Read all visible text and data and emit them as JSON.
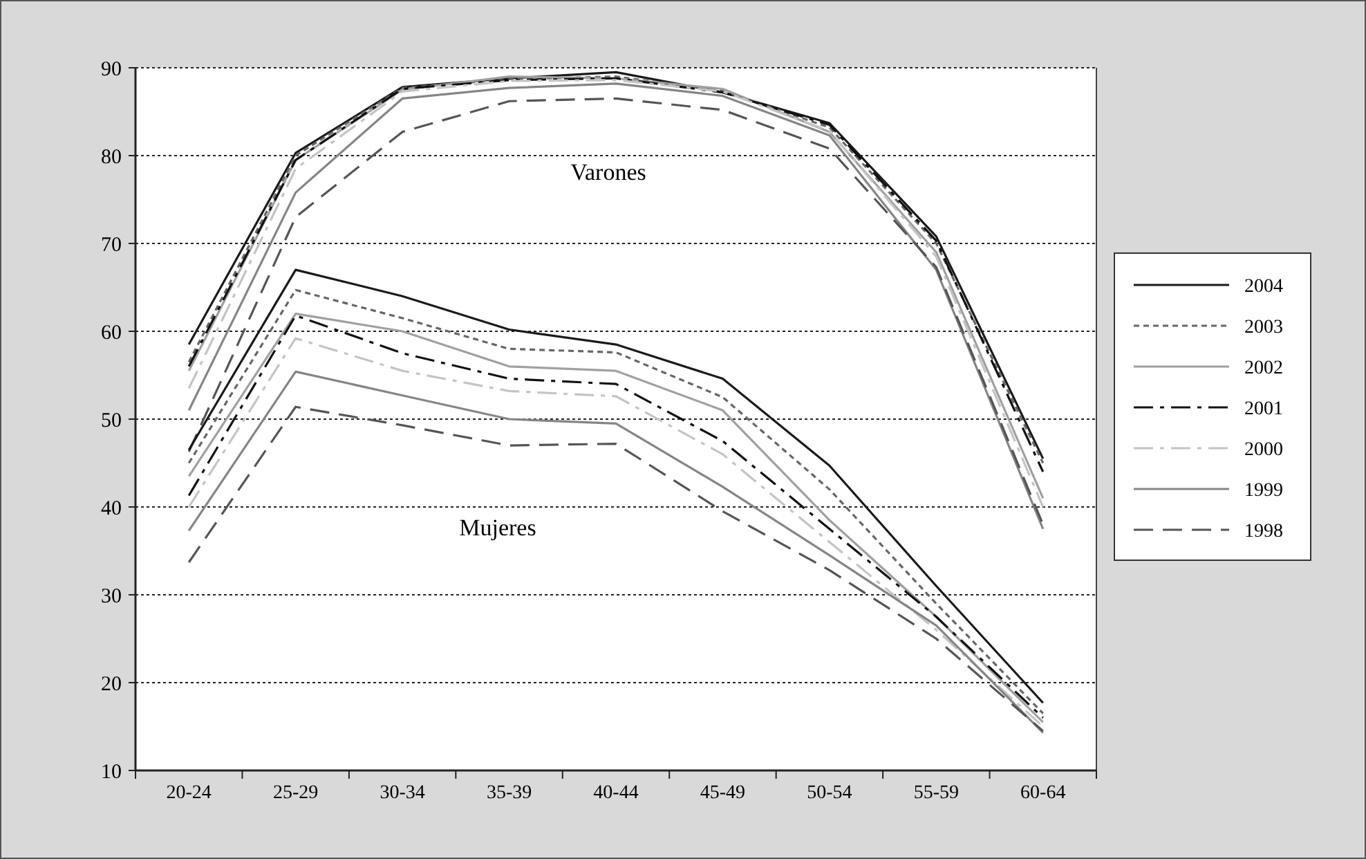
{
  "chart_data": {
    "type": "line",
    "categories": [
      "20-24",
      "25-29",
      "30-34",
      "35-39",
      "40-44",
      "45-49",
      "50-54",
      "55-59",
      "60-64"
    ],
    "ylim": [
      10,
      90
    ],
    "yticks": [
      10,
      20,
      30,
      40,
      50,
      60,
      70,
      80,
      90
    ],
    "grid": "y",
    "legend": "right",
    "marker": "none",
    "annotations": [
      "Varones",
      "Mujeres"
    ],
    "series": [
      {
        "name": "2004",
        "color": "#1a1a1a",
        "line_style": "solid",
        "values": [
          58.5,
          80.3,
          87.8,
          88.8,
          89.5,
          87.2,
          83.7,
          70.8,
          45.5
        ]
      },
      {
        "name": "2003",
        "color": "#666666",
        "line_style": "dotted",
        "values": [
          56.5,
          80,
          87.7,
          88.7,
          89,
          87.4,
          83.2,
          70,
          45
        ]
      },
      {
        "name": "2002",
        "color": "#a0a0a0",
        "line_style": "solid",
        "values": [
          55.5,
          79.5,
          87.5,
          89,
          88.8,
          87.6,
          82.7,
          69,
          41
        ]
      },
      {
        "name": "2001",
        "color": "#111111",
        "line_style": "dashdot",
        "values": [
          56,
          79.5,
          87.6,
          88.6,
          88.8,
          87.2,
          83.5,
          70.3,
          44
        ]
      },
      {
        "name": "2000",
        "color": "#c4c4c4",
        "line_style": "dashdot",
        "values": [
          53.5,
          78.5,
          87.3,
          88.5,
          88.6,
          87.3,
          82.8,
          68.5,
          40
        ]
      },
      {
        "name": "1999",
        "color": "#858585",
        "line_style": "solid",
        "values": [
          51,
          75.8,
          86.5,
          87.7,
          88.2,
          86.8,
          82.3,
          67,
          37.5
        ]
      },
      {
        "name": "1998",
        "color": "#555555",
        "line_style": "dashed",
        "values": [
          46.3,
          73,
          82.7,
          86.2,
          86.5,
          85.2,
          80.8,
          67.3,
          38
        ]
      },
      {
        "color": "#1a1a1a",
        "line_style": "solid",
        "values": [
          46.5,
          67,
          64,
          60.2,
          58.5,
          54.6,
          44.7,
          31,
          17.7
        ]
      },
      {
        "color": "#666666",
        "line_style": "dotted",
        "values": [
          45,
          64.7,
          61.5,
          58,
          57.6,
          52.5,
          42,
          29,
          16.5
        ]
      },
      {
        "color": "#a0a0a0",
        "line_style": "solid",
        "values": [
          43.5,
          62,
          60,
          56,
          55.5,
          51,
          38.5,
          27.5,
          15.5
        ]
      },
      {
        "color": "#111111",
        "line_style": "dashdot",
        "values": [
          41.3,
          61.8,
          57.5,
          54.6,
          54,
          47.5,
          37.5,
          27.5,
          16
        ]
      },
      {
        "color": "#c4c4c4",
        "line_style": "dashdot",
        "values": [
          40,
          59.2,
          55.5,
          53.2,
          52.6,
          46,
          36,
          26,
          15
        ]
      },
      {
        "color": "#858585",
        "line_style": "solid",
        "values": [
          37.3,
          55.4,
          52.7,
          50,
          49.5,
          42.3,
          34.5,
          26.5,
          14.3
        ]
      },
      {
        "color": "#555555",
        "line_style": "dashed",
        "values": [
          33.7,
          51.4,
          49.3,
          47,
          47.2,
          39.5,
          32.8,
          25,
          14.5
        ]
      }
    ]
  }
}
